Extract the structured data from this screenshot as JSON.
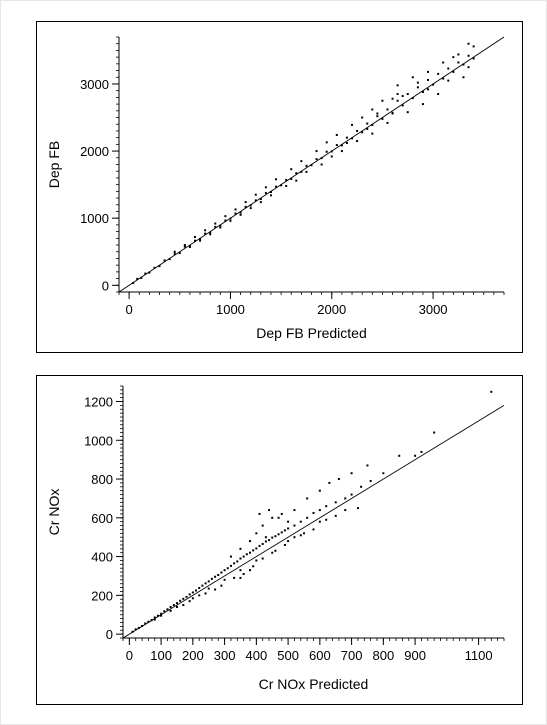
{
  "chart_data": [
    {
      "type": "scatter",
      "title": "",
      "xlabel": "Dep FB Predicted",
      "ylabel": "Dep FB",
      "xlim": [
        -100,
        3700
      ],
      "ylim": [
        -100,
        3700
      ],
      "xticks": [
        0,
        1000,
        2000,
        3000
      ],
      "yticks": [
        0,
        1000,
        2000,
        3000
      ],
      "x_minor_step": 100,
      "y_minor_step": 100,
      "reference_line": [
        [
          -100,
          -100
        ],
        [
          3700,
          3700
        ]
      ],
      "grid": false,
      "legend": "none",
      "marker_color": "#000000",
      "points": [
        [
          40,
          35
        ],
        [
          80,
          95
        ],
        [
          120,
          110
        ],
        [
          160,
          175
        ],
        [
          200,
          190
        ],
        [
          250,
          260
        ],
        [
          300,
          285
        ],
        [
          350,
          370
        ],
        [
          400,
          390
        ],
        [
          450,
          470
        ],
        [
          500,
          480
        ],
        [
          550,
          575
        ],
        [
          600,
          585
        ],
        [
          650,
          665
        ],
        [
          700,
          690
        ],
        [
          750,
          770
        ],
        [
          800,
          785
        ],
        [
          850,
          870
        ],
        [
          900,
          890
        ],
        [
          950,
          965
        ],
        [
          1000,
          995
        ],
        [
          1050,
          1070
        ],
        [
          1100,
          1085
        ],
        [
          1150,
          1170
        ],
        [
          1200,
          1190
        ],
        [
          1250,
          1265
        ],
        [
          1300,
          1285
        ],
        [
          1350,
          1375
        ],
        [
          1400,
          1390
        ],
        [
          1450,
          1470
        ],
        [
          1500,
          1490
        ],
        [
          1550,
          1570
        ],
        [
          1600,
          1585
        ],
        [
          1650,
          1670
        ],
        [
          1700,
          1690
        ],
        [
          1750,
          1780
        ],
        [
          1800,
          1790
        ],
        [
          1850,
          1880
        ],
        [
          1900,
          1895
        ],
        [
          1950,
          1990
        ],
        [
          2000,
          1995
        ],
        [
          2050,
          2090
        ],
        [
          2100,
          2085
        ],
        [
          2150,
          2200
        ],
        [
          2200,
          2190
        ],
        [
          2250,
          2300
        ],
        [
          2300,
          2280
        ],
        [
          2350,
          2410
        ],
        [
          2400,
          2390
        ],
        [
          2450,
          2520
        ],
        [
          2500,
          2480
        ],
        [
          2550,
          2620
        ],
        [
          2600,
          2570
        ],
        [
          2650,
          2750
        ],
        [
          2700,
          2680
        ],
        [
          2750,
          2850
        ],
        [
          2800,
          2790
        ],
        [
          2850,
          2950
        ],
        [
          2900,
          2880
        ],
        [
          2950,
          3060
        ],
        [
          3000,
          2990
        ],
        [
          3050,
          3150
        ],
        [
          3100,
          3080
        ],
        [
          3150,
          3230
        ],
        [
          3200,
          3180
        ],
        [
          3250,
          3320
        ],
        [
          3300,
          3290
        ],
        [
          3350,
          3420
        ],
        [
          3400,
          3380
        ],
        [
          3400,
          3560
        ],
        [
          3350,
          3600
        ],
        [
          3250,
          3440
        ],
        [
          3100,
          3320
        ],
        [
          2950,
          3180
        ],
        [
          2800,
          3100
        ],
        [
          2650,
          2980
        ],
        [
          2600,
          2560
        ],
        [
          2500,
          2750
        ],
        [
          2400,
          2620
        ],
        [
          2300,
          2500
        ],
        [
          2200,
          2390
        ],
        [
          2150,
          2120
        ],
        [
          2050,
          2240
        ],
        [
          1950,
          2130
        ],
        [
          1850,
          2000
        ],
        [
          1700,
          1850
        ],
        [
          1600,
          1730
        ],
        [
          1450,
          1580
        ],
        [
          1350,
          1460
        ],
        [
          1250,
          1350
        ],
        [
          1150,
          1240
        ],
        [
          1050,
          1130
        ],
        [
          950,
          1030
        ],
        [
          850,
          920
        ],
        [
          750,
          820
        ],
        [
          650,
          720
        ],
        [
          550,
          600
        ],
        [
          450,
          500
        ],
        [
          3050,
          2850
        ],
        [
          2900,
          2700
        ],
        [
          2750,
          2580
        ],
        [
          2650,
          2850
        ],
        [
          2550,
          2420
        ],
        [
          2400,
          2260
        ],
        [
          2250,
          2150
        ],
        [
          2100,
          2000
        ],
        [
          2000,
          1920
        ],
        [
          1900,
          1800
        ],
        [
          1750,
          1690
        ],
        [
          1650,
          1560
        ],
        [
          1550,
          1480
        ],
        [
          1400,
          1340
        ],
        [
          1300,
          1240
        ],
        [
          1200,
          1150
        ],
        [
          1100,
          1050
        ],
        [
          1000,
          960
        ],
        [
          900,
          860
        ],
        [
          800,
          760
        ],
        [
          700,
          665
        ],
        [
          600,
          570
        ],
        [
          3300,
          3100
        ],
        [
          3200,
          3400
        ],
        [
          3350,
          3250
        ],
        [
          3150,
          3050
        ],
        [
          2950,
          2920
        ],
        [
          2850,
          3020
        ],
        [
          2700,
          2820
        ],
        [
          2600,
          2780
        ],
        [
          2450,
          2560
        ],
        [
          2350,
          2330
        ]
      ]
    },
    {
      "type": "scatter",
      "title": "",
      "xlabel": "Cr NOx Predicted",
      "ylabel": "Cr NOx",
      "xlim": [
        -20,
        1180
      ],
      "ylim": [
        -20,
        1280
      ],
      "xticks": [
        0,
        100,
        200,
        300,
        400,
        500,
        600,
        700,
        800,
        900,
        1100
      ],
      "xtick_labels": [
        "0",
        "100",
        "200",
        "300",
        "400",
        "500",
        "600",
        "700",
        "800",
        "900",
        "1100"
      ],
      "yticks": [
        0,
        200,
        400,
        600,
        800,
        1000,
        1200
      ],
      "x_minor_step": 20,
      "y_minor_step": 20,
      "reference_line": [
        [
          -20,
          -20
        ],
        [
          1180,
          1180
        ]
      ],
      "grid": false,
      "legend": "none",
      "marker_color": "#000000",
      "points": [
        [
          10,
          12
        ],
        [
          20,
          25
        ],
        [
          30,
          32
        ],
        [
          40,
          42
        ],
        [
          50,
          55
        ],
        [
          60,
          64
        ],
        [
          70,
          72
        ],
        [
          80,
          86
        ],
        [
          90,
          95
        ],
        [
          100,
          105
        ],
        [
          110,
          118
        ],
        [
          120,
          128
        ],
        [
          130,
          140
        ],
        [
          140,
          150
        ],
        [
          150,
          160
        ],
        [
          160,
          172
        ],
        [
          170,
          182
        ],
        [
          180,
          192
        ],
        [
          190,
          205
        ],
        [
          200,
          215
        ],
        [
          210,
          225
        ],
        [
          220,
          238
        ],
        [
          230,
          250
        ],
        [
          240,
          262
        ],
        [
          250,
          272
        ],
        [
          260,
          285
        ],
        [
          270,
          296
        ],
        [
          280,
          305
        ],
        [
          290,
          318
        ],
        [
          300,
          330
        ],
        [
          310,
          340
        ],
        [
          320,
          352
        ],
        [
          330,
          365
        ],
        [
          340,
          375
        ],
        [
          350,
          390
        ],
        [
          360,
          400
        ],
        [
          370,
          412
        ],
        [
          380,
          420
        ],
        [
          390,
          432
        ],
        [
          400,
          442
        ],
        [
          410,
          455
        ],
        [
          420,
          465
        ],
        [
          430,
          478
        ],
        [
          440,
          485
        ],
        [
          450,
          498
        ],
        [
          460,
          505
        ],
        [
          470,
          515
        ],
        [
          480,
          525
        ],
        [
          490,
          535
        ],
        [
          500,
          545
        ],
        [
          520,
          560
        ],
        [
          540,
          580
        ],
        [
          560,
          600
        ],
        [
          580,
          625
        ],
        [
          600,
          640
        ],
        [
          620,
          660
        ],
        [
          650,
          680
        ],
        [
          680,
          700
        ],
        [
          700,
          720
        ],
        [
          730,
          760
        ],
        [
          760,
          790
        ],
        [
          800,
          830
        ],
        [
          850,
          920
        ],
        [
          900,
          920
        ],
        [
          920,
          940
        ],
        [
          960,
          1040
        ],
        [
          1140,
          1250
        ],
        [
          720,
          650
        ],
        [
          650,
          610
        ],
        [
          600,
          580
        ],
        [
          550,
          520
        ],
        [
          500,
          480
        ],
        [
          450,
          420
        ],
        [
          400,
          380
        ],
        [
          350,
          330
        ],
        [
          300,
          280
        ],
        [
          250,
          235
        ],
        [
          200,
          185
        ],
        [
          150,
          140
        ],
        [
          100,
          95
        ],
        [
          320,
          400
        ],
        [
          350,
          440
        ],
        [
          380,
          480
        ],
        [
          400,
          520
        ],
        [
          420,
          560
        ],
        [
          450,
          600
        ],
        [
          480,
          620
        ],
        [
          520,
          640
        ],
        [
          560,
          700
        ],
        [
          600,
          740
        ],
        [
          630,
          780
        ],
        [
          660,
          800
        ],
        [
          700,
          830
        ],
        [
          750,
          870
        ],
        [
          410,
          620
        ],
        [
          440,
          640
        ],
        [
          470,
          600
        ],
        [
          500,
          580
        ],
        [
          430,
          500
        ],
        [
          380,
          330
        ],
        [
          360,
          310
        ],
        [
          330,
          290
        ],
        [
          290,
          250
        ],
        [
          270,
          230
        ],
        [
          240,
          210
        ],
        [
          220,
          200
        ],
        [
          190,
          170
        ],
        [
          170,
          150
        ],
        [
          130,
          120
        ],
        [
          80,
          75
        ],
        [
          350,
          290
        ],
        [
          390,
          350
        ],
        [
          420,
          390
        ],
        [
          460,
          430
        ],
        [
          490,
          460
        ],
        [
          520,
          500
        ],
        [
          540,
          510
        ],
        [
          580,
          540
        ],
        [
          620,
          590
        ],
        [
          680,
          640
        ]
      ]
    }
  ]
}
